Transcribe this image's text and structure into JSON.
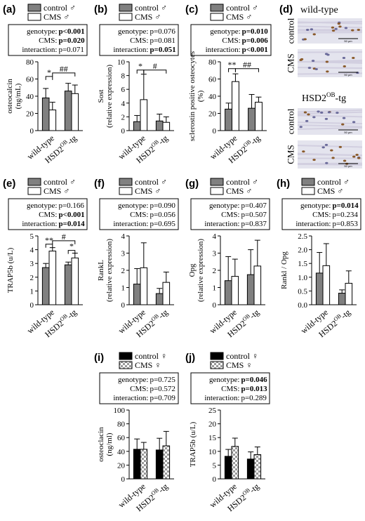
{
  "colors": {
    "control": "#808080",
    "cms": "#ffffff",
    "control_female": "#000000"
  },
  "chart_data": [
    {
      "id": "a",
      "panel_label": "(a)",
      "type": "bar",
      "legend": [
        "control ♂",
        "CMS ♂"
      ],
      "stats": [
        {
          "label": "genotype:",
          "value": "p<0.001",
          "bold": true
        },
        {
          "label": "CMS:",
          "value": "p=0.020",
          "bold": true
        },
        {
          "label": "interaction:",
          "value": "p=0.071",
          "bold": false
        }
      ],
      "ylabel": "osteocalcin (ng/mL)",
      "yticks": [
        "0",
        "20",
        "40",
        "60",
        "80"
      ],
      "ylim": [
        0,
        80
      ],
      "categories": [
        "wild-type",
        "HSD2OB-tg"
      ],
      "series": [
        {
          "name": "control ♂",
          "style": "control",
          "values": [
            38,
            46
          ],
          "errors": [
            11,
            9
          ]
        },
        {
          "name": "CMS ♂",
          "style": "cms",
          "values": [
            24,
            43
          ],
          "errors": [
            9,
            10
          ]
        }
      ],
      "annotations": [
        {
          "text": "*",
          "from": [
            0,
            0
          ],
          "to": [
            0,
            1
          ],
          "y": 63
        },
        {
          "text": "##",
          "from": [
            0,
            1
          ],
          "to": [
            1,
            1
          ],
          "y": 67
        }
      ]
    },
    {
      "id": "b",
      "panel_label": "(b)",
      "type": "bar",
      "legend": [
        "control ♂",
        "CMS ♂"
      ],
      "stats": [
        {
          "label": "genotype:",
          "value": "p=0.076",
          "bold": false
        },
        {
          "label": "CMS:",
          "value": "p=0.081",
          "bold": false
        },
        {
          "label": "interaction:",
          "value": "p=0.051",
          "bold": true
        }
      ],
      "ylabel": "Sost (relative expression)",
      "yticks": [
        "0",
        "2",
        "4",
        "6",
        "8",
        "10"
      ],
      "ylim": [
        0,
        10
      ],
      "categories": [
        "wild-type",
        "HSD2OB-tg"
      ],
      "series": [
        {
          "name": "control ♂",
          "style": "control",
          "values": [
            1.3,
            1.4
          ],
          "errors": [
            0.9,
            1.0
          ]
        },
        {
          "name": "CMS ♂",
          "style": "cms",
          "values": [
            4.5,
            1.2
          ],
          "errors": [
            3.7,
            0.8
          ]
        }
      ],
      "annotations": [
        {
          "text": "*",
          "from": [
            0,
            0
          ],
          "to": [
            0,
            1
          ],
          "y": 8.8
        },
        {
          "text": "#",
          "from": [
            0,
            1
          ],
          "to": [
            1,
            1
          ],
          "y": 8.8
        }
      ]
    },
    {
      "id": "c",
      "panel_label": "(c)",
      "type": "bar",
      "legend": [
        "control ♂",
        "CMS ♂"
      ],
      "stats": [
        {
          "label": "genotype:",
          "value": "p=0.010",
          "bold": true
        },
        {
          "label": "CMS:",
          "value": "p=0.006",
          "bold": true
        },
        {
          "label": "interaction:",
          "value": "p<0.001",
          "bold": true
        }
      ],
      "ylabel": "sclerostin positive osteocytes (%)",
      "yticks": [
        "0",
        "20",
        "40",
        "60",
        "80"
      ],
      "ylim": [
        0,
        80
      ],
      "categories": [
        "wild-type",
        "HSD2OB-tg"
      ],
      "series": [
        {
          "name": "control ♂",
          "style": "control",
          "values": [
            25,
            26
          ],
          "errors": [
            7,
            16
          ]
        },
        {
          "name": "CMS ♂",
          "style": "cms",
          "values": [
            57,
            33
          ],
          "errors": [
            9,
            6
          ]
        }
      ],
      "annotations": [
        {
          "text": "**",
          "from": [
            0,
            0
          ],
          "to": [
            0,
            1
          ],
          "y": 72
        },
        {
          "text": "##",
          "from": [
            0,
            1
          ],
          "to": [
            1,
            1
          ],
          "y": 72
        }
      ]
    },
    {
      "id": "e",
      "panel_label": "(e)",
      "type": "bar",
      "legend": [
        "control ♂",
        "CMS ♂"
      ],
      "stats": [
        {
          "label": "genotype:",
          "value": "p=0.166",
          "bold": false
        },
        {
          "label": "CMS:",
          "value": "p<0.001",
          "bold": true
        },
        {
          "label": "interaction:",
          "value": "p=0.014",
          "bold": true
        }
      ],
      "ylabel": "TRAP5b (u/L)",
      "yticks": [
        "0",
        "1",
        "2",
        "3",
        "4",
        "5"
      ],
      "ylim": [
        0,
        5
      ],
      "categories": [
        "wild-type",
        "HSD2OB-tg"
      ],
      "series": [
        {
          "name": "control ♂",
          "style": "control",
          "values": [
            2.7,
            2.9
          ],
          "errors": [
            0.3,
            0.2
          ]
        },
        {
          "name": "CMS ♂",
          "style": "cms",
          "values": [
            3.9,
            3.4
          ],
          "errors": [
            0.25,
            0.35
          ]
        }
      ],
      "annotations": [
        {
          "text": "**",
          "from": [
            0,
            0
          ],
          "to": [
            0,
            1
          ],
          "y": 4.4
        },
        {
          "text": "*",
          "from": [
            1,
            0
          ],
          "to": [
            1,
            1
          ],
          "y": 3.95
        },
        {
          "text": "#",
          "from": [
            0,
            1
          ],
          "to": [
            1,
            1
          ],
          "y": 4.65
        }
      ]
    },
    {
      "id": "f",
      "panel_label": "(f)",
      "type": "bar",
      "legend": [
        "control ♂",
        "CMS ♂"
      ],
      "stats": [
        {
          "label": "genotype:",
          "value": "p=0.090",
          "bold": false
        },
        {
          "label": "CMS:",
          "value": "p=0.056",
          "bold": false
        },
        {
          "label": "interaction:",
          "value": "p=0.695",
          "bold": false
        }
      ],
      "ylabel": "RankL (relative expression)",
      "yticks": [
        "0",
        "1",
        "2",
        "3",
        "4"
      ],
      "ylim": [
        0,
        4
      ],
      "categories": [
        "wild-type",
        "HSD2OB-tg"
      ],
      "series": [
        {
          "name": "control ♂",
          "style": "control",
          "values": [
            1.2,
            0.65
          ],
          "errors": [
            0.9,
            0.3
          ]
        },
        {
          "name": "CMS ♂",
          "style": "cms",
          "values": [
            2.15,
            1.3
          ],
          "errors": [
            1.45,
            0.6
          ]
        }
      ],
      "annotations": []
    },
    {
      "id": "g",
      "panel_label": "(g)",
      "type": "bar",
      "legend": [
        "control ♂",
        "CMS ♂"
      ],
      "stats": [
        {
          "label": "genotype:",
          "value": "p=0.407",
          "bold": false
        },
        {
          "label": "CMS:",
          "value": "p=0.507",
          "bold": false
        },
        {
          "label": "interaction:",
          "value": "p=0.837",
          "bold": false
        }
      ],
      "ylabel": "Opg (relative expression)",
      "yticks": [
        "0",
        "1",
        "2",
        "3",
        "4"
      ],
      "ylim": [
        0,
        4
      ],
      "categories": [
        "wild-type",
        "HSD2OB-tg"
      ],
      "series": [
        {
          "name": "control ♂",
          "style": "control",
          "values": [
            1.4,
            1.75
          ],
          "errors": [
            1.4,
            1.45
          ]
        },
        {
          "name": "CMS ♂",
          "style": "cms",
          "values": [
            1.65,
            2.25
          ],
          "errors": [
            1.0,
            1.5
          ]
        }
      ],
      "annotations": []
    },
    {
      "id": "h",
      "panel_label": "(h)",
      "type": "bar",
      "legend": [
        "control ♂",
        "CMS ♂"
      ],
      "stats": [
        {
          "label": "genotype:",
          "value": "p=0.014",
          "bold": true
        },
        {
          "label": "CMS:",
          "value": "p=0.234",
          "bold": false
        },
        {
          "label": "interaction:",
          "value": "p=0.853",
          "bold": false
        }
      ],
      "ylabel": "Rankl / Opg",
      "yticks": [
        "0.0",
        "0.5",
        "1.0",
        "1.5",
        "2.0",
        "2.5"
      ],
      "ylim": [
        0,
        2.5
      ],
      "categories": [
        "wild-type",
        "HSD2OB-tg"
      ],
      "series": [
        {
          "name": "control ♂",
          "style": "control",
          "values": [
            1.15,
            0.42
          ],
          "errors": [
            0.75,
            0.12
          ]
        },
        {
          "name": "CMS ♂",
          "style": "cms",
          "values": [
            1.42,
            0.78
          ],
          "errors": [
            0.8,
            0.45
          ]
        }
      ],
      "annotations": []
    },
    {
      "id": "i",
      "panel_label": "(i)",
      "type": "bar",
      "legend": [
        "control ♀",
        "CMS ♀"
      ],
      "stats": [
        {
          "label": "genotype:",
          "value": "p=0.725",
          "bold": false
        },
        {
          "label": "CMS:",
          "value": "p=0.572",
          "bold": false
        },
        {
          "label": "interaction:",
          "value": "p=0.709",
          "bold": false
        }
      ],
      "ylabel": "osteoclacin (ng/ml)",
      "yticks": [
        "0",
        "20",
        "40",
        "60",
        "80",
        "100"
      ],
      "ylim": [
        0,
        100
      ],
      "categories": [
        "wild-type",
        "HSD2OB-tg"
      ],
      "series": [
        {
          "name": "control ♀",
          "style": "control_female",
          "values": [
            43,
            42
          ],
          "errors": [
            15,
            17
          ]
        },
        {
          "name": "CMS ♀",
          "style": "checker",
          "values": [
            43,
            48
          ],
          "errors": [
            10,
            21
          ]
        }
      ],
      "annotations": []
    },
    {
      "id": "j",
      "panel_label": "(j)",
      "type": "bar",
      "legend": [
        "control ♀",
        "CMS ♀"
      ],
      "stats": [
        {
          "label": "genotype:",
          "value": "p=0.046",
          "bold": true
        },
        {
          "label": "CMS:",
          "value": "p=0.013",
          "bold": true
        },
        {
          "label": "interaction:",
          "value": "p=0.289",
          "bold": false
        }
      ],
      "ylabel": "TRAP5b (u/L)",
      "yticks": [
        "0",
        "5",
        "10",
        "15",
        "20",
        "25"
      ],
      "ylim": [
        0,
        25
      ],
      "categories": [
        "wild-type",
        "HSD2OB-tg"
      ],
      "series": [
        {
          "name": "control ♀",
          "style": "control_female",
          "values": [
            8.2,
            7.2
          ],
          "errors": [
            2.5,
            2.6
          ]
        },
        {
          "name": "CMS ♀",
          "style": "checker",
          "values": [
            11.8,
            8.8
          ],
          "errors": [
            3.0,
            2.8
          ]
        }
      ],
      "annotations": []
    }
  ],
  "histology": {
    "panel_label": "(d)",
    "title_top": "wild-type",
    "title_bottom": "HSD2OB-tg",
    "row_labels": [
      "control",
      "CMS",
      "control",
      "CMS"
    ],
    "scale_text": "50 µm"
  }
}
